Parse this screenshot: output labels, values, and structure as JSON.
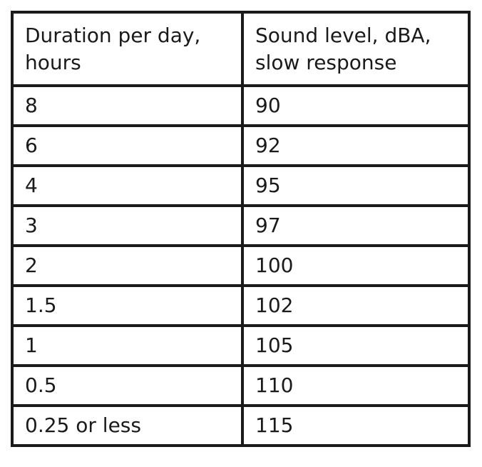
{
  "table": {
    "headers": [
      [
        "Duration per day,",
        "hours"
      ],
      [
        "Sound level, dBA,",
        "slow response"
      ]
    ],
    "rows": [
      [
        "8",
        "90"
      ],
      [
        "6",
        "92"
      ],
      [
        "4",
        "95"
      ],
      [
        "3",
        "97"
      ],
      [
        "2",
        "100"
      ],
      [
        "1.5",
        "102"
      ],
      [
        "1",
        "105"
      ],
      [
        "0.5",
        "110"
      ],
      [
        "0.25 or less",
        "115"
      ]
    ]
  }
}
